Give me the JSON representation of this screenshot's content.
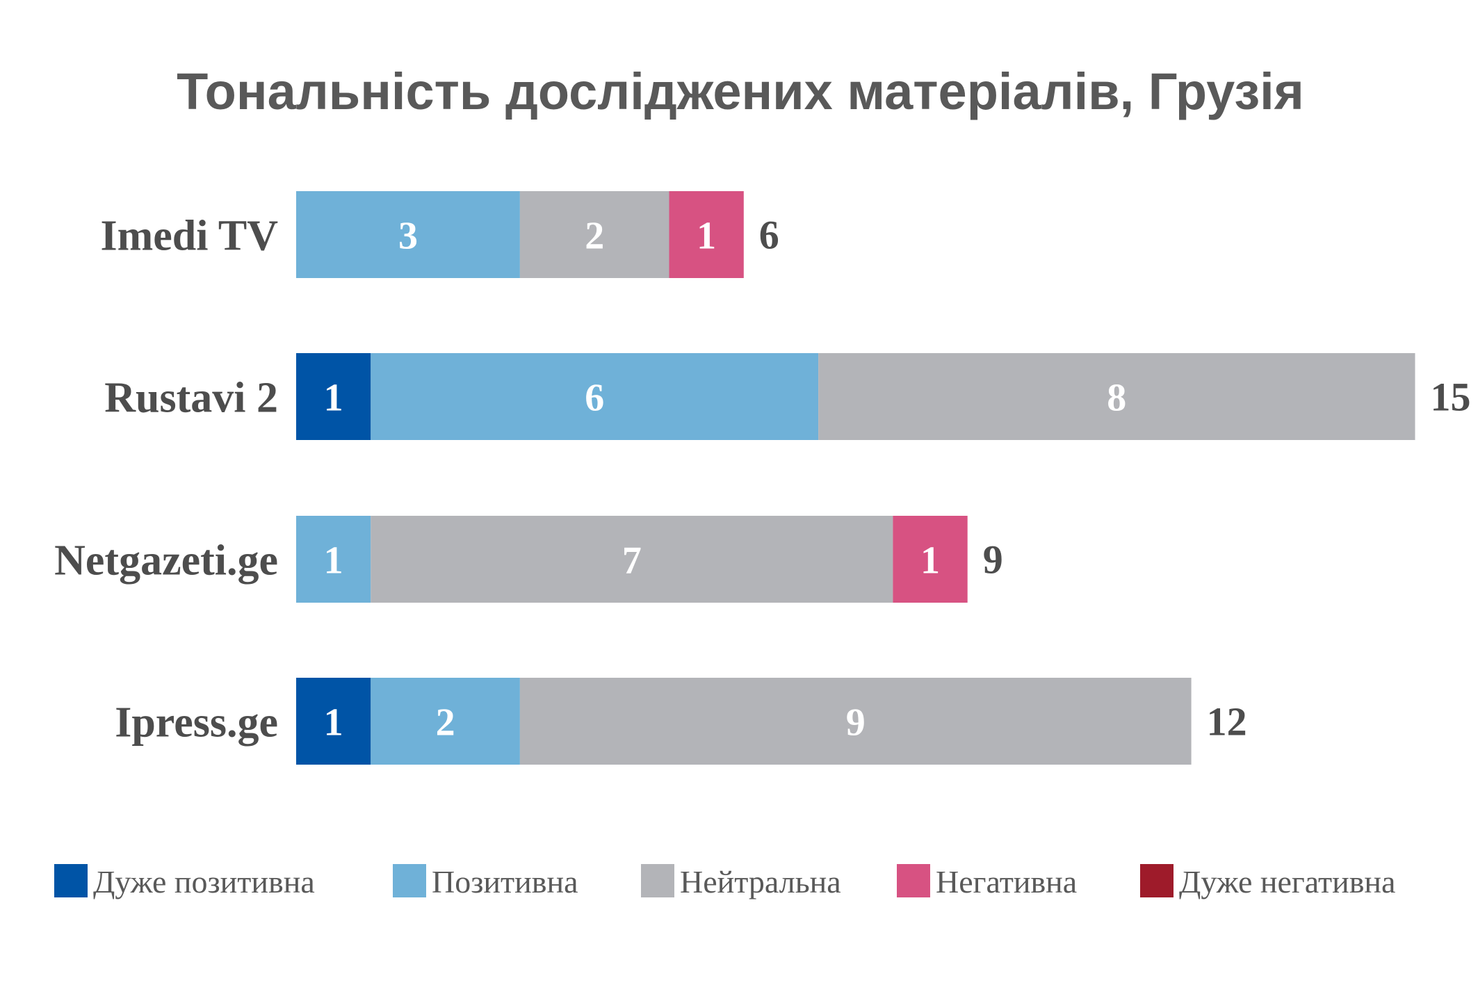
{
  "chart_data": {
    "type": "bar",
    "orientation": "horizontal",
    "stacked": true,
    "title": "Тональність досліджених матеріалів, Грузія",
    "categories": [
      "Imedi TV",
      "Rustavi 2",
      "Netgazeti.ge",
      "Ipress.ge"
    ],
    "series": [
      {
        "name": "Дуже позитивна",
        "color": "#0054a6",
        "values": [
          0,
          1,
          0,
          1
        ]
      },
      {
        "name": "Позитивна",
        "color": "#6fb1d8",
        "values": [
          3,
          6,
          1,
          2
        ]
      },
      {
        "name": "Нейтральна",
        "color": "#b3b4b8",
        "values": [
          2,
          8,
          7,
          9
        ]
      },
      {
        "name": "Негативна",
        "color": "#d75282",
        "values": [
          1,
          0,
          1,
          0
        ]
      },
      {
        "name": "Дуже негативна",
        "color": "#9e1b2a",
        "values": [
          0,
          0,
          0,
          0
        ]
      }
    ],
    "totals": [
      6,
      15,
      9,
      12
    ],
    "xlim": [
      0,
      15
    ],
    "grid": false,
    "legend_position": "bottom"
  }
}
